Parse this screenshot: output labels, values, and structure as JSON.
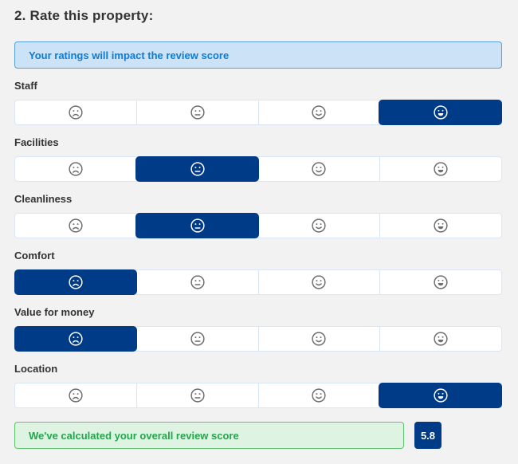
{
  "title": "2. Rate this property:",
  "info_banner": {
    "text": "Your ratings will impact the review score"
  },
  "rating_scale": [
    {
      "value": 1,
      "icon": "sad-face-icon"
    },
    {
      "value": 2,
      "icon": "neutral-face-icon"
    },
    {
      "value": 3,
      "icon": "smile-face-icon"
    },
    {
      "value": 4,
      "icon": "big-smile-face-icon"
    }
  ],
  "categories": [
    {
      "label": "Staff",
      "selected": 4
    },
    {
      "label": "Facilities",
      "selected": 2
    },
    {
      "label": "Cleanliness",
      "selected": 2
    },
    {
      "label": "Comfort",
      "selected": 1
    },
    {
      "label": "Value for money",
      "selected": 1
    },
    {
      "label": "Location",
      "selected": 4
    }
  ],
  "result_banner": {
    "text": "We've calculated your overall review score"
  },
  "overall_score": "5.8",
  "colors": {
    "selected_bg": "#003b87",
    "info_bg": "#cbe2f7",
    "info_text": "#0c7cd5",
    "result_bg": "#def3e1",
    "result_text": "#21a74c",
    "icon_gray": "#6d6d6d",
    "page_bg": "#f2f2f2"
  }
}
